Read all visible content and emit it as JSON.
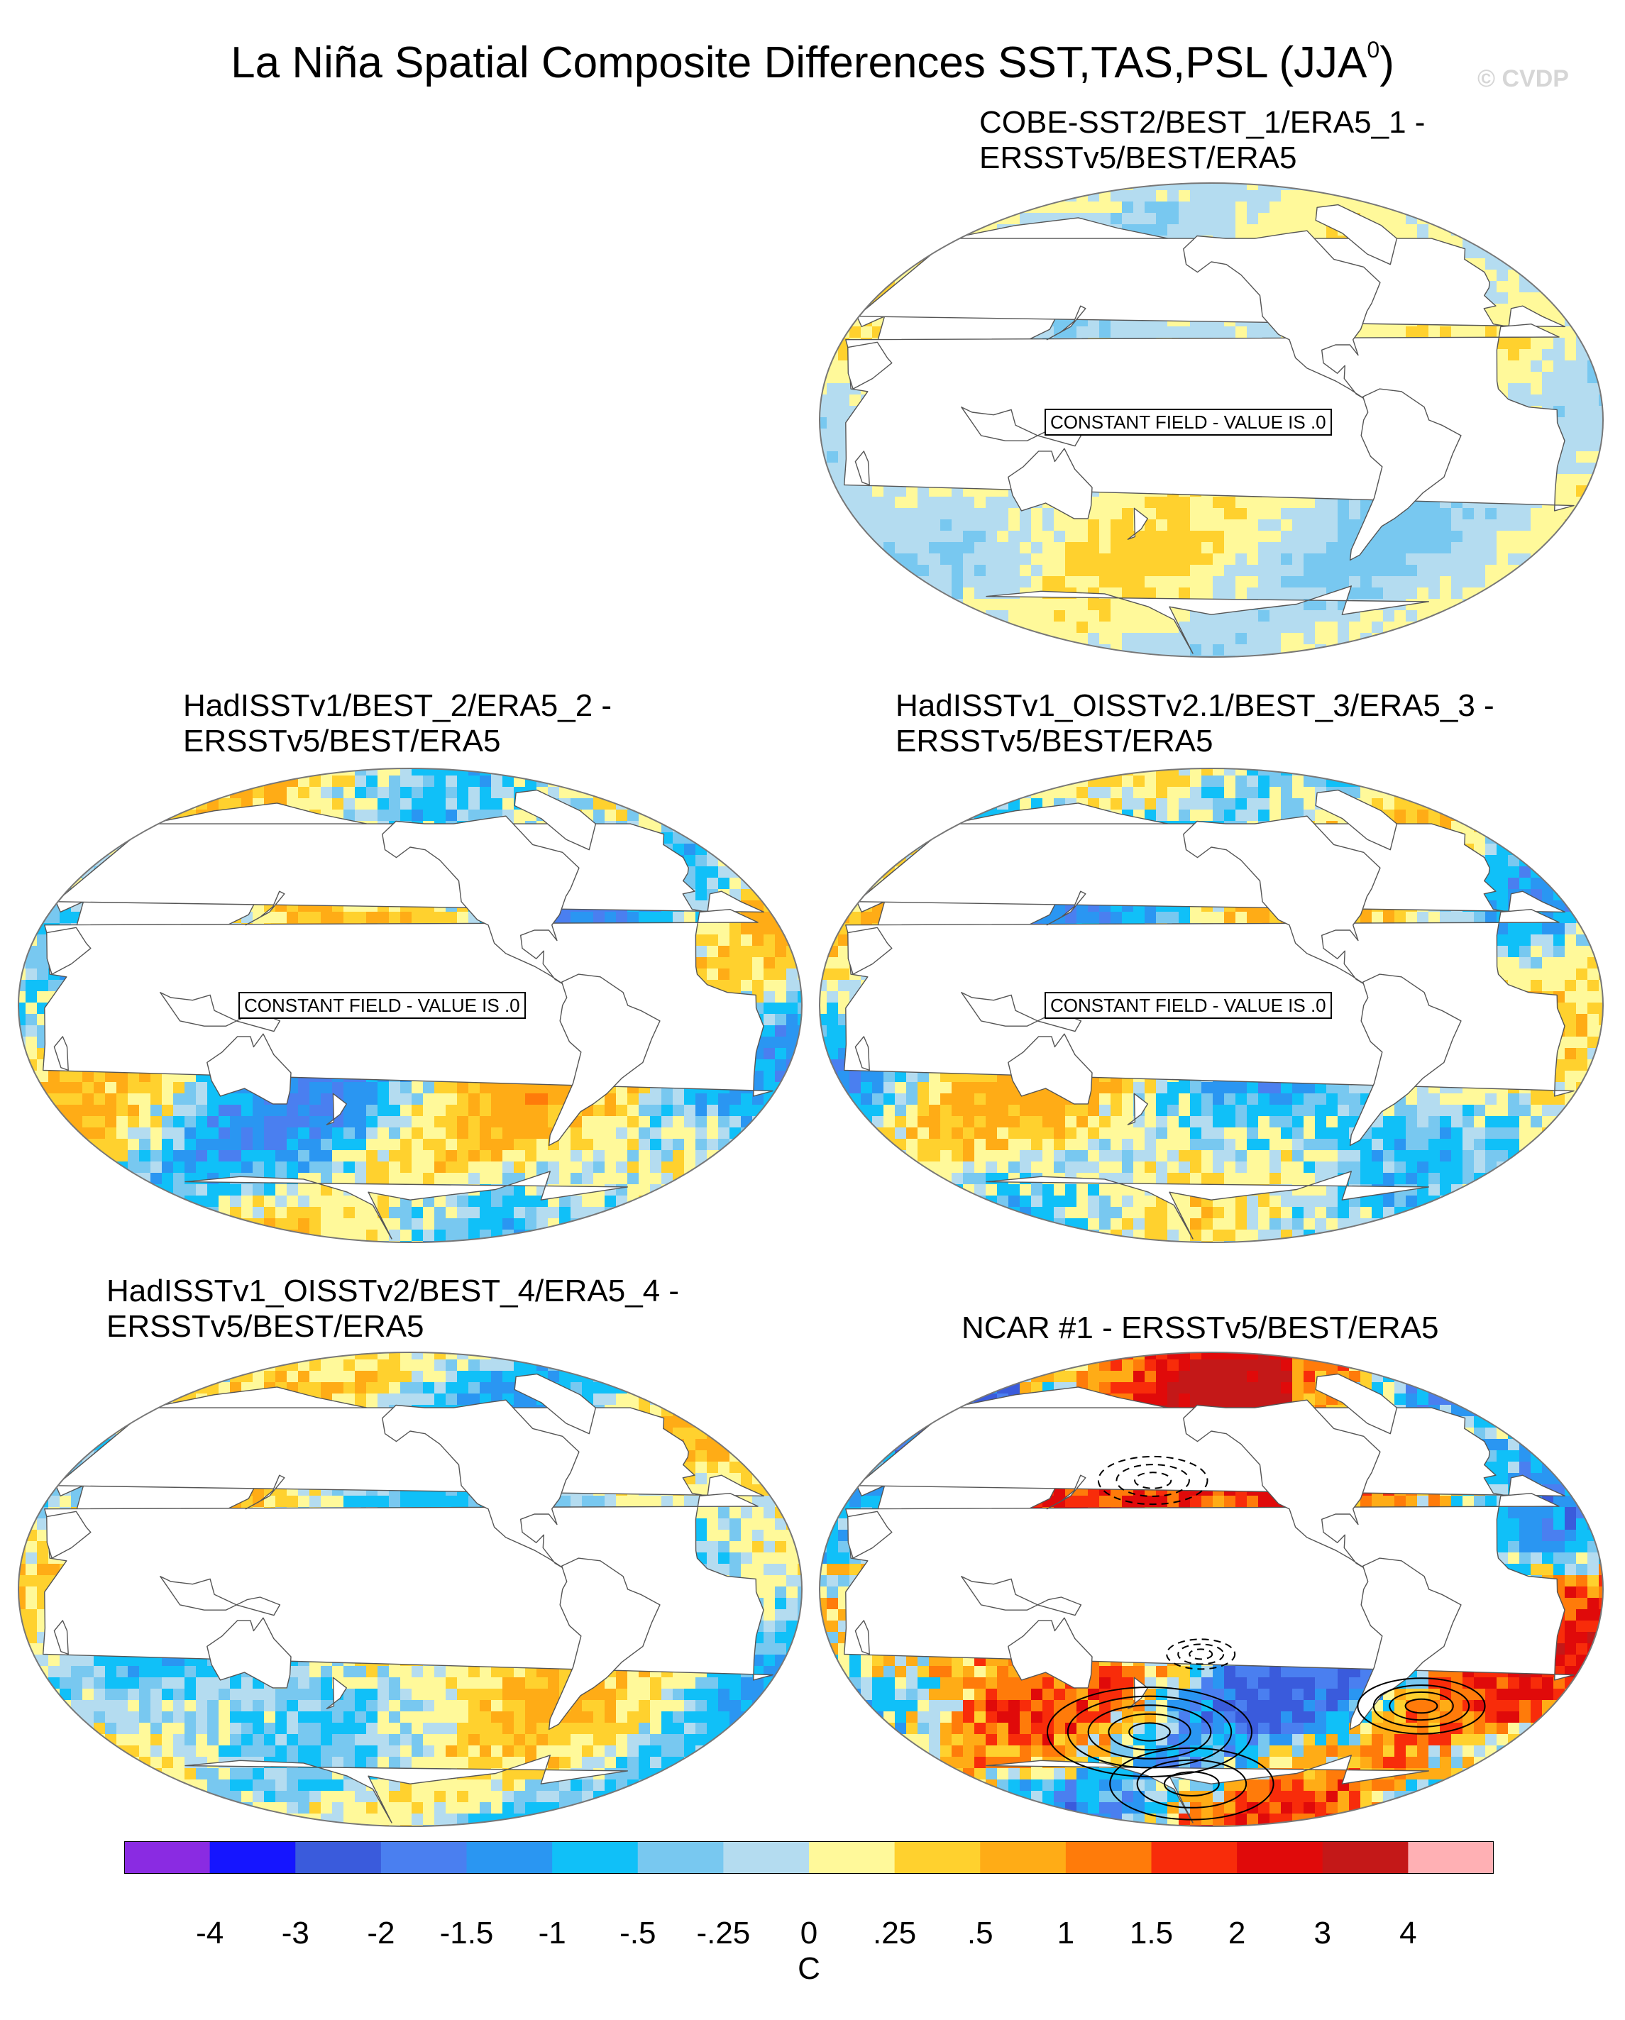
{
  "chart_data": {
    "type": "heatmap",
    "title": "La Niña Spatial Composite Differences SST,TAS,PSL (JJA",
    "title_superscript": "0",
    "title_close": ")",
    "watermark": "© CVDP",
    "projection": "Robinson (global)",
    "units": "C",
    "colorbar": {
      "tick_labels": [
        "-4",
        "-3",
        "-2",
        "-1.5",
        "-1",
        "-.5",
        "-.25",
        "0",
        ".25",
        ".5",
        "1",
        "1.5",
        "2",
        "3",
        "4"
      ],
      "levels": [
        -4,
        -3,
        -2,
        -1.5,
        -1,
        -0.5,
        -0.25,
        0,
        0.25,
        0.5,
        1,
        1.5,
        2,
        3,
        4
      ],
      "colors": [
        "#8a2be2",
        "#1515ff",
        "#3a5bdc",
        "#4a7ff0",
        "#2a96f2",
        "#10c0f8",
        "#78c8f0",
        "#b4dcf0",
        "#fff99a",
        "#ffd12e",
        "#ffac16",
        "#ff7b0a",
        "#f82c0a",
        "#e00a0a",
        "#c41818",
        "#ffb0b4"
      ]
    },
    "panels": [
      {
        "id": "cobe",
        "title_line1": "COBE-SST2/BEST_1/ERA5_1 -",
        "title_line2": "ERSSTv5/BEST/ERA5",
        "note": "CONSTANT FIELD - VALUE IS .0",
        "range": [
          -0.5,
          0.5
        ],
        "has_psl_contours": false
      },
      {
        "id": "hadisst",
        "title_line1": "HadISSTv1/BEST_2/ERA5_2 -",
        "title_line2": "ERSSTv5/BEST/ERA5",
        "note": "CONSTANT FIELD - VALUE IS .0",
        "range": [
          -2,
          1
        ],
        "has_psl_contours": false
      },
      {
        "id": "hadisst-oisst21",
        "title_line1": "HadISSTv1_OISSTv2.1/BEST_3/ERA5_3 -",
        "title_line2": "ERSSTv5/BEST/ERA5",
        "note": "CONSTANT FIELD - VALUE IS .0",
        "range": [
          -2,
          1
        ],
        "has_psl_contours": false
      },
      {
        "id": "hadisst-oisst2",
        "title_line1": "HadISSTv1_OISSTv2/BEST_4/ERA5_4 -",
        "title_line2": "ERSSTv5/BEST/ERA5",
        "note": "",
        "range": [
          -1.5,
          1
        ],
        "has_psl_contours": false
      },
      {
        "id": "ncar",
        "title_line1": "NCAR #1 - ERSSTv5/BEST/ERA5",
        "title_line2": "",
        "note": "",
        "range": [
          -3,
          3
        ],
        "has_psl_contours": true
      }
    ]
  }
}
